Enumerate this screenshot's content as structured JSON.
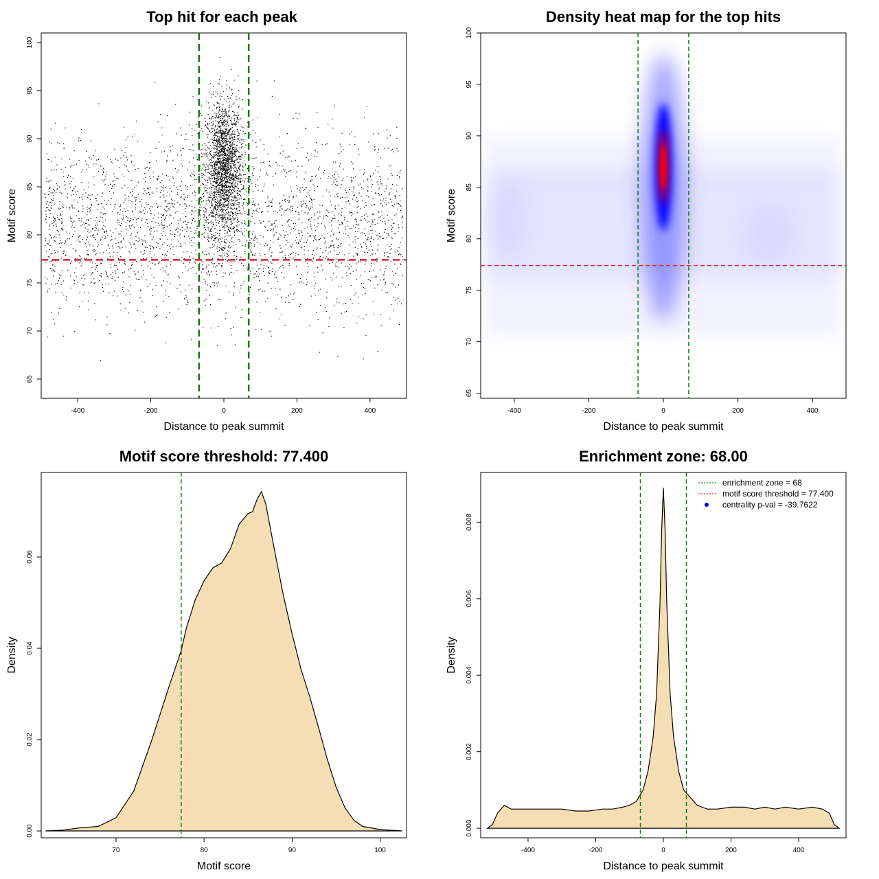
{
  "colors": {
    "threshold": "#e8212f",
    "zone": "#117a11",
    "fill": "#f5deb3",
    "points": "#000000",
    "heat_low": "#ffffff",
    "heat_mid": "#0000ff",
    "heat_high": "#ff0000",
    "legend_dot": "#0000ff"
  },
  "chart_data": [
    {
      "type": "scatter",
      "title": "Top hit for each peak",
      "xlabel": "Distance to peak summit",
      "ylabel": "Motif score",
      "xlim": [
        -500,
        500
      ],
      "ylim": [
        63,
        101
      ],
      "xticks": [
        -400,
        -200,
        0,
        200,
        400
      ],
      "yticks": [
        65,
        70,
        75,
        80,
        85,
        90,
        95,
        100
      ],
      "hlines": [
        77.4
      ],
      "vlines": [
        -68,
        68
      ],
      "point_count_approx": 5000,
      "core": {
        "x_center": 0,
        "x_spread": 25,
        "y_center": 87,
        "y_spread": 3.5,
        "y_range": [
          77,
          100
        ]
      },
      "background": {
        "x_range": [
          -490,
          490
        ],
        "y_center": 81,
        "y_spread": 4.5,
        "y_range": [
          65,
          96
        ]
      }
    },
    {
      "type": "heatmap",
      "title": "Density heat map for the top hits",
      "xlabel": "Distance to peak summit",
      "ylabel": "Motif score",
      "xlim": [
        -490,
        490
      ],
      "ylim": [
        64.5,
        100
      ],
      "xticks": [
        -400,
        -200,
        0,
        200,
        400
      ],
      "yticks": [
        65,
        70,
        75,
        80,
        85,
        90,
        95,
        100
      ],
      "hlines": [
        77.4
      ],
      "vlines": [
        -68,
        68
      ],
      "peak": {
        "x": 0,
        "y": 87
      }
    },
    {
      "type": "area",
      "title": "Motif score threshold: 77.400",
      "xlabel": "Motif score",
      "ylabel": "Density",
      "xlim": [
        61.5,
        103
      ],
      "ylim": [
        -0.0015,
        0.0785
      ],
      "xticks": [
        70,
        80,
        90,
        100
      ],
      "yticks": [
        0.0,
        0.02,
        0.04,
        0.06
      ],
      "ytick_labels": [
        "0.00",
        "0.02",
        "0.04",
        "0.06"
      ],
      "vlines": [
        77.4
      ],
      "x": [
        62,
        64,
        66,
        68,
        70,
        72,
        74,
        76,
        77.4,
        78,
        79,
        80,
        81,
        82,
        83,
        84,
        85,
        85.5,
        86,
        86.5,
        87,
        88,
        89,
        90,
        91,
        92,
        93,
        94,
        95,
        96,
        97,
        98,
        100,
        102.5
      ],
      "y": [
        0.0,
        0.0002,
        0.0007,
        0.001,
        0.0029,
        0.0087,
        0.0195,
        0.0315,
        0.0395,
        0.0445,
        0.0506,
        0.0548,
        0.0576,
        0.0587,
        0.0618,
        0.0672,
        0.0695,
        0.0699,
        0.0725,
        0.0743,
        0.0717,
        0.0615,
        0.0517,
        0.0432,
        0.0355,
        0.0294,
        0.0227,
        0.0157,
        0.0096,
        0.0051,
        0.0024,
        0.001,
        0.0003,
        0.0
      ]
    },
    {
      "type": "area",
      "title": "Enrichment zone: 68.00",
      "xlabel": "Distance to peak summit",
      "ylabel": "Density",
      "xlim": [
        -540,
        540
      ],
      "ylim": [
        -0.00025,
        0.0093
      ],
      "xticks": [
        -400,
        -200,
        0,
        200,
        400
      ],
      "yticks": [
        0.0,
        0.002,
        0.004,
        0.006,
        0.008
      ],
      "ytick_labels": [
        "0.000",
        "0.002",
        "0.004",
        "0.006",
        "0.008"
      ],
      "vlines": [
        -68,
        68
      ],
      "x": [
        -520,
        -505,
        -490,
        -470,
        -450,
        -420,
        -380,
        -340,
        -300,
        -260,
        -220,
        -180,
        -150,
        -120,
        -100,
        -80,
        -60,
        -45,
        -30,
        -20,
        -10,
        -5,
        0,
        5,
        10,
        20,
        30,
        45,
        60,
        80,
        100,
        130,
        160,
        200,
        240,
        270,
        300,
        330,
        360,
        400,
        440,
        470,
        490,
        505,
        520
      ],
      "y": [
        0.0,
        0.0001,
        0.0004,
        0.0006,
        0.0005,
        0.0005,
        0.0005,
        0.0005,
        0.0005,
        0.00045,
        0.00045,
        0.0005,
        0.0005,
        0.00055,
        0.0006,
        0.0007,
        0.001,
        0.0015,
        0.0024,
        0.0035,
        0.0059,
        0.0078,
        0.0089,
        0.0078,
        0.0059,
        0.0035,
        0.0024,
        0.0015,
        0.001,
        0.0008,
        0.0006,
        0.0005,
        0.0005,
        0.00055,
        0.00055,
        0.0005,
        0.00055,
        0.0005,
        0.00055,
        0.0005,
        0.00055,
        0.0005,
        0.0004,
        0.0001,
        0.0
      ],
      "legend": {
        "placement": "top-right",
        "items": [
          {
            "label": "enrichment zone = 68",
            "style": "dotted",
            "color": "#117a11"
          },
          {
            "label": "motif score threshold = 77.400",
            "style": "dotted",
            "color": "#e8212f"
          },
          {
            "label": "centrality p-val = -39.7622",
            "style": "dot",
            "color": "#0000ff"
          }
        ]
      }
    }
  ]
}
